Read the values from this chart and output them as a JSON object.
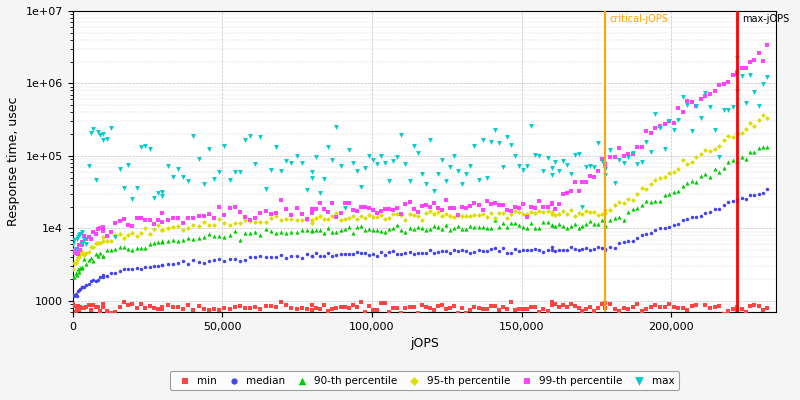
{
  "xlabel": "jOPS",
  "ylabel": "Response time, usec",
  "xlim": [
    0,
    235000
  ],
  "ylim": [
    700,
    10000000
  ],
  "critical_jops": 178000,
  "max_jops": 222000,
  "critical_label": "critical-jOPS",
  "max_label": "max-jOPS",
  "critical_color": "#FFA500",
  "max_color": "#FF0000",
  "background_color": "#f5f5f5",
  "plot_bg_color": "#ffffff",
  "grid_color": "#bbbbbb",
  "series": {
    "min": {
      "color": "#FF4444",
      "marker": "s",
      "ms": 2.5,
      "label": "min"
    },
    "median": {
      "color": "#4444EE",
      "marker": "o",
      "ms": 2.5,
      "label": "median"
    },
    "p90": {
      "color": "#00CC00",
      "marker": "^",
      "ms": 3.0,
      "label": "90-th percentile"
    },
    "p95": {
      "color": "#DDDD00",
      "marker": "D",
      "ms": 2.5,
      "label": "95-th percentile"
    },
    "p99": {
      "color": "#FF44FF",
      "marker": "s",
      "ms": 2.5,
      "label": "99-th percentile"
    },
    "max": {
      "color": "#00CCCC",
      "marker": "v",
      "ms": 3.5,
      "label": "max"
    }
  }
}
